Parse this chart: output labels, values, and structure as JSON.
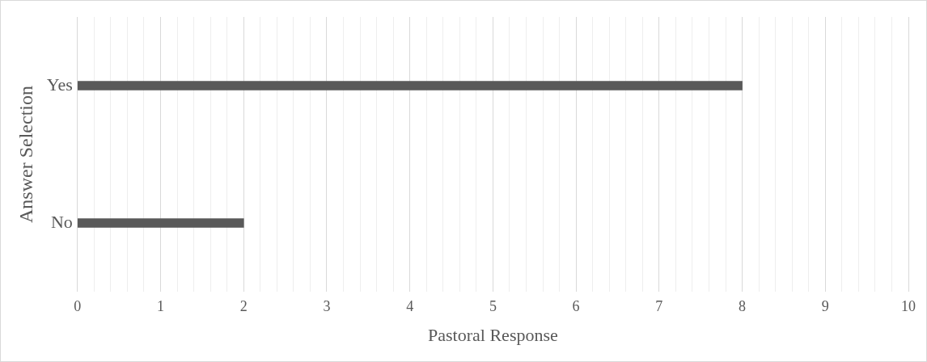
{
  "chart_data": {
    "type": "bar",
    "orientation": "horizontal",
    "xlabel": "Pastoral Response",
    "ylabel": "Answer Selection",
    "categories": [
      "Yes",
      "No"
    ],
    "values": [
      8,
      2
    ],
    "color": "#595959",
    "xlim": [
      0,
      10
    ],
    "xticks": [
      0,
      {
        "value": 0.2,
        "label": null
      },
      {
        "value": 0.4,
        "label": null
      },
      {
        "value": 0.6,
        "label": null
      },
      {
        "value": 0.8,
        "label": null
      },
      1,
      {
        "value": 1.2,
        "label": null
      },
      {
        "value": 1.4,
        "label": null
      },
      {
        "value": 1.6,
        "label": null
      },
      {
        "value": 1.8,
        "label": null
      },
      2,
      {
        "value": 2.2,
        "label": null
      },
      {
        "value": 2.4,
        "label": null
      },
      {
        "value": 2.6,
        "label": null
      },
      {
        "value": 2.8,
        "label": null
      },
      3,
      {
        "value": 3.2,
        "label": null
      },
      {
        "value": 3.4,
        "label": null
      },
      {
        "value": 3.6,
        "label": null
      },
      {
        "value": 3.8,
        "label": null
      },
      4,
      {
        "value": 4.2,
        "label": null
      },
      {
        "value": 4.4,
        "label": null
      },
      {
        "value": 4.6,
        "label": null
      },
      {
        "value": 4.8,
        "label": null
      },
      5,
      {
        "value": 5.2,
        "label": null
      },
      {
        "value": 5.4,
        "label": null
      },
      {
        "value": 5.6,
        "label": null
      },
      {
        "value": 5.8,
        "label": null
      },
      6,
      {
        "value": 6.2,
        "label": null
      },
      {
        "value": 6.4,
        "label": null
      },
      {
        "value": 6.6,
        "label": null
      },
      {
        "value": 6.8,
        "label": null
      },
      7,
      {
        "value": 7.2,
        "label": null
      },
      {
        "value": 7.4,
        "label": null
      },
      {
        "value": 7.6,
        "label": null
      },
      {
        "value": 7.8,
        "label": null
      },
      8,
      {
        "value": 8.2,
        "label": null
      },
      {
        "value": 8.4,
        "label": null
      },
      {
        "value": 8.6,
        "label": null
      },
      {
        "value": 8.8,
        "label": null
      },
      9,
      {
        "value": 9.2,
        "label": null
      },
      {
        "value": 9.4,
        "label": null
      },
      {
        "value": 9.6,
        "label": null
      },
      {
        "value": 9.8,
        "label": null
      },
      10
    ],
    "grid": "x",
    "legend": false
  }
}
